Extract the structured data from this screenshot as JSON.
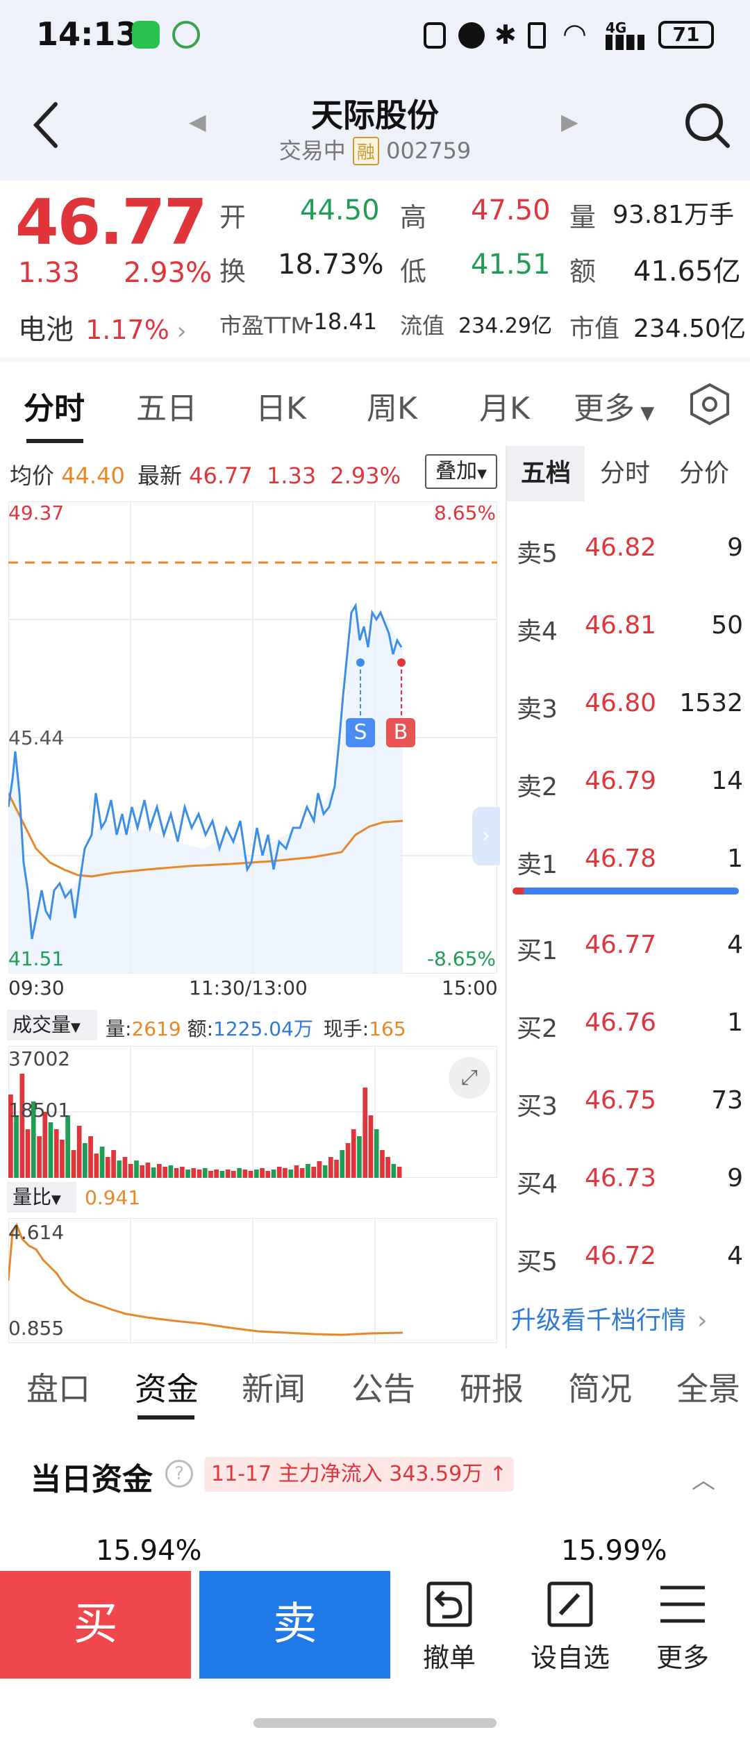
{
  "status_bar": {
    "time": "14:13",
    "network": "4G",
    "battery": "71"
  },
  "header": {
    "title": "天际股份",
    "status": "交易中",
    "margin_badge": "融",
    "code": "002759"
  },
  "quote": {
    "price": "46.77",
    "change": "1.33",
    "change_pct": "2.93%",
    "open_label": "开",
    "open": "44.50",
    "high_label": "高",
    "high": "47.50",
    "volume_label": "量",
    "volume": "93.81万手",
    "turnover_label": "换",
    "turnover": "18.73%",
    "low_label": "低",
    "low": "41.51",
    "amount_label": "额",
    "amount": "41.65亿",
    "sector_label": "电池",
    "sector_pct": "1.17%",
    "pe_label": "市盈TTM",
    "pe": "-18.41",
    "float_label": "流值",
    "float_cap": "234.29亿",
    "mcap_label": "市值",
    "mcap": "234.50亿"
  },
  "tabs": [
    "分时",
    "五日",
    "日K",
    "周K",
    "月K",
    "更多"
  ],
  "chart_info": {
    "avg_label": "均价",
    "avg": "44.40",
    "last_label": "最新",
    "last": "46.77",
    "chg": "1.33",
    "chg_pct": "2.93%",
    "overlay_label": "叠加",
    "y_top": "49.37",
    "y_top_pct": "8.65%",
    "y_mid": "45.44",
    "y_bottom": "41.51",
    "y_bottom_pct": "-8.65%",
    "t_start": "09:30",
    "t_mid": "11:30/13:00",
    "t_end": "15:00",
    "marker_s": "S",
    "marker_b": "B"
  },
  "volume_panel": {
    "selector": "成交量",
    "vol_label": "量:",
    "vol": "2619",
    "amt_label": "额:",
    "amt": "1225.04万",
    "hand_label": "现手:",
    "hand": "165",
    "y_top": "37002",
    "y_mid": "18501"
  },
  "ratio_panel": {
    "selector": "量比",
    "value": "0.941",
    "y_top": "4.614",
    "y_bottom": "0.855"
  },
  "order_book": {
    "tabs": [
      "五档",
      "分时",
      "分价"
    ],
    "asks": [
      {
        "label": "卖5",
        "price": "46.82",
        "vol": "9"
      },
      {
        "label": "卖4",
        "price": "46.81",
        "vol": "50"
      },
      {
        "label": "卖3",
        "price": "46.80",
        "vol": "1532"
      },
      {
        "label": "卖2",
        "price": "46.79",
        "vol": "14"
      },
      {
        "label": "卖1",
        "price": "46.78",
        "vol": "1"
      }
    ],
    "bids": [
      {
        "label": "买1",
        "price": "46.77",
        "vol": "4"
      },
      {
        "label": "买2",
        "price": "46.76",
        "vol": "1"
      },
      {
        "label": "买3",
        "price": "46.75",
        "vol": "73"
      },
      {
        "label": "买4",
        "price": "46.73",
        "vol": "9"
      },
      {
        "label": "买5",
        "price": "46.72",
        "vol": "4"
      }
    ],
    "upgrade": "升级看千档行情"
  },
  "bottom_tabs": [
    "盘口",
    "资金",
    "新闻",
    "公告",
    "研报",
    "简况",
    "全景"
  ],
  "fund": {
    "title": "当日资金",
    "badge": "11-17 主力净流入 343.59万",
    "left_pct": "15.94%",
    "right_pct": "15.99%"
  },
  "bottom_bar": {
    "buy": "买",
    "sell": "卖",
    "cancel": "撤单",
    "watch": "设自选",
    "more": "更多"
  },
  "colors": {
    "up": "#e0353b",
    "down": "#1f9d55",
    "price_line": "#3b8ee8",
    "avg_line": "#e8872a",
    "buy": "#f0474f",
    "sell": "#1f7ae8"
  }
}
